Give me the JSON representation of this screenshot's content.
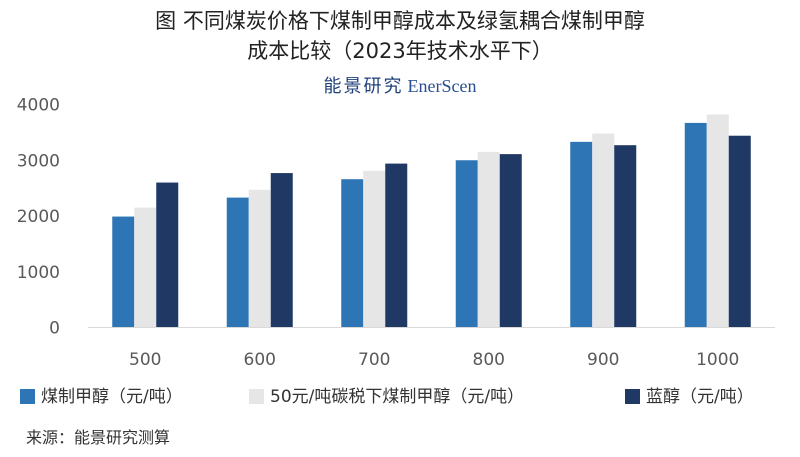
{
  "title_lines": [
    "图  不同煤炭价格下煤制甲醇成本及绿氢耦合煤制甲醇",
    "成本比较（2023年技术水平下）"
  ],
  "watermark": {
    "chinese": "能景研究",
    "english": "EnerScen"
  },
  "source": "来源：能景研究测算",
  "colors": {
    "series1": "#2e75b6",
    "series2": "#e7e6e6",
    "series3": "#203864",
    "axis": "#d9d9d9"
  },
  "chart_data": {
    "type": "bar",
    "categories": [
      "500",
      "600",
      "700",
      "800",
      "900",
      "1000"
    ],
    "series": [
      {
        "name": "煤制甲醇（元/吨）",
        "values": [
          1990,
          2330,
          2660,
          3000,
          3330,
          3670
        ]
      },
      {
        "name": "50元/吨碳税下煤制甲醇（元/吨）",
        "values": [
          2150,
          2470,
          2810,
          3150,
          3480,
          3820
        ]
      },
      {
        "name": "蓝醇（元/吨）",
        "values": [
          2600,
          2770,
          2940,
          3110,
          3270,
          3440
        ]
      }
    ],
    "yticks": [
      "0",
      "1000",
      "2000",
      "3000",
      "4000"
    ],
    "ylim": [
      0,
      4000
    ],
    "grid": false,
    "legend": "bottom"
  }
}
